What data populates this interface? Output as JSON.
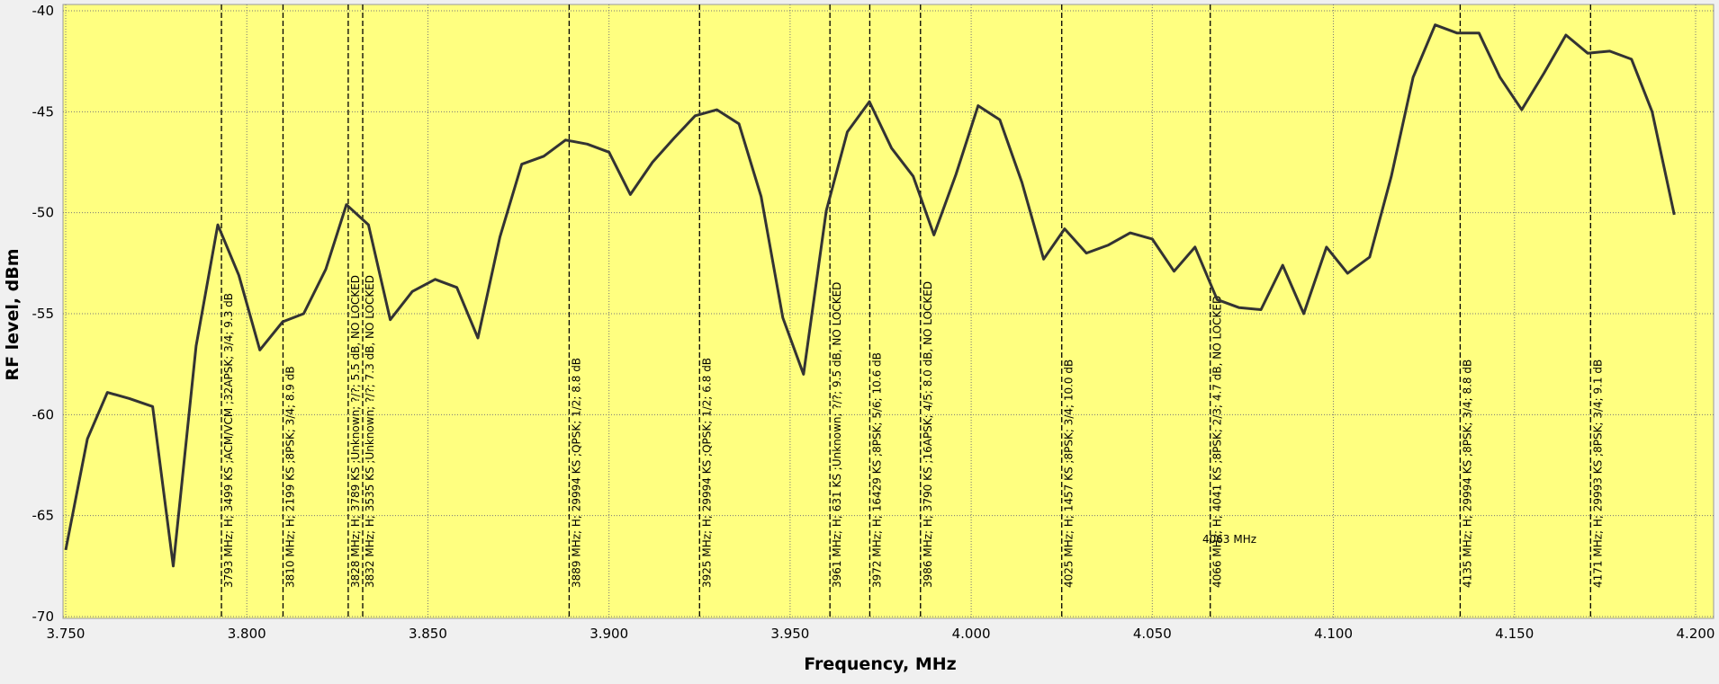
{
  "chart_data": {
    "type": "line",
    "x_label": "Frequency, MHz",
    "y_label": "RF level, dBm",
    "x": [
      3.75,
      3.756,
      3.7615,
      3.7676,
      3.774,
      3.7797,
      3.786,
      3.792,
      3.7978,
      3.8036,
      3.8099,
      3.8157,
      3.8218,
      3.8275,
      3.8336,
      3.8396,
      3.8457,
      3.852,
      3.858,
      3.8638,
      3.8699,
      3.8759,
      3.882,
      3.888,
      3.894,
      3.9,
      3.9059,
      3.912,
      3.918,
      3.9238,
      3.9298,
      3.9359,
      3.942,
      3.948,
      3.9537,
      3.96,
      3.9658,
      3.9719,
      3.978,
      3.984,
      3.9897,
      3.9958,
      4.0019,
      4.0079,
      4.014,
      4.02,
      4.0258,
      4.0318,
      4.0379,
      4.0439,
      4.05,
      4.056,
      4.0618,
      4.0679,
      4.074,
      4.08,
      4.086,
      4.0918,
      4.0981,
      4.1039,
      4.11,
      4.116,
      4.122,
      4.1281,
      4.1341,
      4.1402,
      4.146,
      4.152,
      4.1581,
      4.1642,
      4.1702,
      4.1763,
      4.1823,
      4.188,
      4.1941
    ],
    "values": [
      -66.7,
      -61.2,
      -58.9,
      -59.2,
      -59.6,
      -67.5,
      -56.6,
      -50.6,
      -53.1,
      -56.8,
      -55.4,
      -55.0,
      -52.8,
      -49.6,
      -50.6,
      -55.3,
      -53.9,
      -53.3,
      -53.7,
      -56.2,
      -51.2,
      -47.6,
      -47.2,
      -46.4,
      -46.6,
      -47.0,
      -49.1,
      -47.5,
      -46.3,
      -45.2,
      -44.9,
      -45.6,
      -49.2,
      -55.2,
      -58.0,
      -49.9,
      -46.0,
      -44.5,
      -46.8,
      -48.2,
      -51.1,
      -48.1,
      -44.7,
      -45.4,
      -48.5,
      -52.3,
      -50.8,
      -52.0,
      -51.6,
      -51.0,
      -51.3,
      -52.9,
      -51.7,
      -54.3,
      -54.7,
      -54.8,
      -52.6,
      -55.0,
      -51.7,
      -53.0,
      -52.2,
      -48.2,
      -43.3,
      -40.7,
      -41.1,
      -41.1,
      -43.3,
      -44.9,
      -43.1,
      -41.2,
      -42.1,
      -42.0,
      -42.4,
      -45.0,
      -50.1
    ],
    "color": "#333333",
    "xlim": [
      3.75,
      4.2
    ],
    "xticks": [
      {
        "value": 3.75,
        "label": "3.750"
      },
      {
        "value": 3.8,
        "label": "3.800"
      },
      {
        "value": 3.85,
        "label": "3.850"
      },
      {
        "value": 3.9,
        "label": "3.900"
      },
      {
        "value": 3.95,
        "label": "3.950"
      },
      {
        "value": 4.0,
        "label": "4.000"
      },
      {
        "value": 4.05,
        "label": "4.050"
      },
      {
        "value": 4.1,
        "label": "4.100"
      },
      {
        "value": 4.15,
        "label": "4.150"
      },
      {
        "value": 4.2,
        "label": "4.200"
      }
    ],
    "ylim": [
      -70,
      -40
    ],
    "yticks": [
      -70,
      -65,
      -60,
      -55,
      -50,
      -45,
      -40
    ],
    "grid": true,
    "background": "#ffff80",
    "markers": [
      {
        "x": 3.793,
        "label": "3793 MHz; H; 3499 KS ;ACM/VCM ;32APSK; 3/4; 9.3 dB"
      },
      {
        "x": 3.81,
        "label": "3810 MHz; H; 2199 KS ;8PSK; 3/4; 8.9 dB"
      },
      {
        "x": 3.828,
        "label": "3828 MHz; H; 3789 KS ;Unknown; ?/?; 5.5 dB, NO LOCKED"
      },
      {
        "x": 3.832,
        "label": "3832 MHz; H; 3535 KS ;Unknown; ?/?; 7.3 dB, NO LOCKED"
      },
      {
        "x": 3.889,
        "label": "3889 MHz; H; 29994 KS ;QPSK; 1/2; 8.8 dB"
      },
      {
        "x": 3.925,
        "label": "3925 MHz; H; 29994 KS ;QPSK; 1/2; 6.8 dB"
      },
      {
        "x": 3.961,
        "label": "3961 MHz; H; 631 KS ;Unknown; ?/?; 9.5 dB, NO LOCKED"
      },
      {
        "x": 3.972,
        "label": "3972 MHz; H; 16429 KS ;8PSK; 5/6; 10.6 dB"
      },
      {
        "x": 3.986,
        "label": "3986 MHz; H; 3790 KS ;16APSK; 4/5; 8.0 dB, NO LOCKED"
      },
      {
        "x": 4.025,
        "label": "4025 MHz; H; 1457 KS ;8PSK; 3/4; 10.0 dB"
      },
      {
        "x": 4.066,
        "label": "4066 MHz; H; 4041 KS ;8PSK; 2/3; 4.7 dB, NO LOCKED"
      },
      {
        "x": 4.135,
        "label": "4135 MHz; H; 29994 KS ;8PSK; 3/4; 8.8 dB"
      },
      {
        "x": 4.171,
        "label": "4171 MHz; H; 29993 KS ;8PSK; 3/4; 9.1 dB"
      }
    ],
    "annotation": "4063 MHz"
  }
}
